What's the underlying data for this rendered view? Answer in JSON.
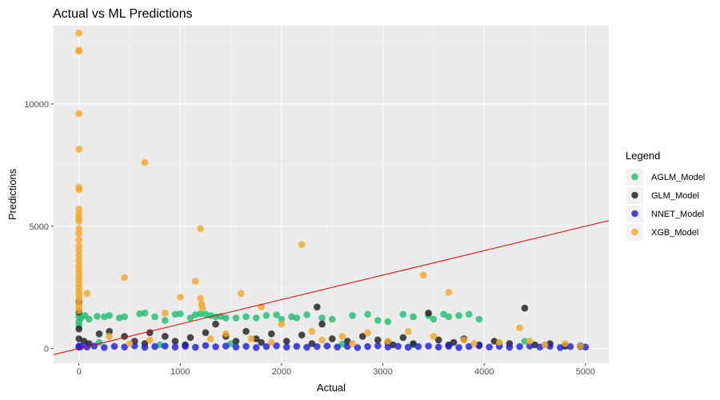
{
  "chart_data": {
    "type": "scatter",
    "title": "Actual vs ML Predictions",
    "xlabel": "Actual",
    "ylabel": "Predictions",
    "xlim": [
      -250,
      5230
    ],
    "ylim": [
      -600,
      13200
    ],
    "x_ticks": [
      0,
      1000,
      2000,
      3000,
      4000,
      5000
    ],
    "y_ticks": [
      0,
      5000,
      10000
    ],
    "grid": true,
    "legend": {
      "title": "Legend",
      "placement": "right"
    },
    "reference_line": {
      "type": "y=x",
      "color": "#e00000"
    },
    "series": [
      {
        "name": "AGLM_Model",
        "color": "#20c070",
        "points": [
          [
            0,
            1300
          ],
          [
            0,
            1100
          ],
          [
            0,
            1450
          ],
          [
            0,
            950
          ],
          [
            20,
            1250
          ],
          [
            60,
            1350
          ],
          [
            100,
            1200
          ],
          [
            180,
            1320
          ],
          [
            250,
            1300
          ],
          [
            300,
            1350
          ],
          [
            400,
            1250
          ],
          [
            450,
            1300
          ],
          [
            600,
            1420
          ],
          [
            650,
            1450
          ],
          [
            750,
            1300
          ],
          [
            850,
            1150
          ],
          [
            950,
            1400
          ],
          [
            1000,
            1420
          ],
          [
            1100,
            1250
          ],
          [
            1150,
            1380
          ],
          [
            1200,
            1420
          ],
          [
            1250,
            1400
          ],
          [
            1300,
            1350
          ],
          [
            1350,
            1300
          ],
          [
            1400,
            1320
          ],
          [
            1450,
            1250
          ],
          [
            1550,
            1250
          ],
          [
            1650,
            1300
          ],
          [
            1750,
            1250
          ],
          [
            1850,
            1350
          ],
          [
            1950,
            1380
          ],
          [
            2000,
            1200
          ],
          [
            2100,
            1300
          ],
          [
            2150,
            1250
          ],
          [
            2250,
            1380
          ],
          [
            2400,
            1250
          ],
          [
            2500,
            1200
          ],
          [
            2700,
            1350
          ],
          [
            2850,
            1400
          ],
          [
            2950,
            1150
          ],
          [
            3050,
            1100
          ],
          [
            3200,
            1400
          ],
          [
            3300,
            1300
          ],
          [
            3450,
            1350
          ],
          [
            3500,
            1200
          ],
          [
            3600,
            1400
          ],
          [
            3650,
            1300
          ],
          [
            3750,
            1350
          ],
          [
            3850,
            1400
          ],
          [
            3950,
            1200
          ],
          [
            4150,
            200
          ],
          [
            4400,
            300
          ],
          [
            4600,
            150
          ],
          [
            4800,
            100
          ],
          [
            4950,
            120
          ],
          [
            200,
            250
          ],
          [
            800,
            150
          ],
          [
            1500,
            200
          ],
          [
            2600,
            180
          ],
          [
            3300,
            150
          ]
        ]
      },
      {
        "name": "GLM_Model",
        "color": "#202020",
        "points": [
          [
            0,
            1900
          ],
          [
            0,
            1500
          ],
          [
            0,
            800
          ],
          [
            0,
            400
          ],
          [
            50,
            300
          ],
          [
            200,
            600
          ],
          [
            300,
            700
          ],
          [
            450,
            500
          ],
          [
            550,
            300
          ],
          [
            700,
            650
          ],
          [
            850,
            500
          ],
          [
            950,
            300
          ],
          [
            1100,
            450
          ],
          [
            1250,
            650
          ],
          [
            1350,
            1000
          ],
          [
            1450,
            500
          ],
          [
            1550,
            300
          ],
          [
            1650,
            700
          ],
          [
            1750,
            400
          ],
          [
            1900,
            600
          ],
          [
            2050,
            300
          ],
          [
            2200,
            550
          ],
          [
            2350,
            1700
          ],
          [
            2400,
            1000
          ],
          [
            2500,
            400
          ],
          [
            2650,
            300
          ],
          [
            2800,
            500
          ],
          [
            2950,
            350
          ],
          [
            3050,
            250
          ],
          [
            3200,
            450
          ],
          [
            3300,
            200
          ],
          [
            3450,
            1450
          ],
          [
            3550,
            350
          ],
          [
            3700,
            250
          ],
          [
            3800,
            400
          ],
          [
            3950,
            150
          ],
          [
            4100,
            300
          ],
          [
            4250,
            200
          ],
          [
            4400,
            1650
          ],
          [
            4500,
            150
          ],
          [
            4650,
            200
          ],
          [
            4800,
            100
          ],
          [
            4950,
            80
          ],
          [
            100,
            200
          ],
          [
            650,
            200
          ],
          [
            1050,
            150
          ],
          [
            1800,
            250
          ],
          [
            2300,
            200
          ],
          [
            3100,
            150
          ],
          [
            3650,
            150
          ]
        ]
      },
      {
        "name": "NNET_Model",
        "color": "#2020e0",
        "points": [
          [
            0,
            100
          ],
          [
            0,
            50
          ],
          [
            20,
            80
          ],
          [
            80,
            60
          ],
          [
            150,
            100
          ],
          [
            250,
            40
          ],
          [
            350,
            90
          ],
          [
            450,
            60
          ],
          [
            550,
            110
          ],
          [
            650,
            50
          ],
          [
            750,
            80
          ],
          [
            850,
            100
          ],
          [
            950,
            60
          ],
          [
            1050,
            90
          ],
          [
            1150,
            50
          ],
          [
            1250,
            120
          ],
          [
            1350,
            70
          ],
          [
            1450,
            100
          ],
          [
            1550,
            60
          ],
          [
            1650,
            90
          ],
          [
            1750,
            40
          ],
          [
            1850,
            80
          ],
          [
            1950,
            110
          ],
          [
            2050,
            60
          ],
          [
            2150,
            90
          ],
          [
            2250,
            50
          ],
          [
            2350,
            80
          ],
          [
            2450,
            100
          ],
          [
            2550,
            60
          ],
          [
            2650,
            90
          ],
          [
            2750,
            40
          ],
          [
            2850,
            80
          ],
          [
            2950,
            110
          ],
          [
            3050,
            60
          ],
          [
            3150,
            90
          ],
          [
            3250,
            50
          ],
          [
            3350,
            80
          ],
          [
            3450,
            100
          ],
          [
            3550,
            60
          ],
          [
            3650,
            90
          ],
          [
            3750,
            40
          ],
          [
            3850,
            80
          ],
          [
            3950,
            110
          ],
          [
            4050,
            60
          ],
          [
            4150,
            90
          ],
          [
            4250,
            50
          ],
          [
            4350,
            80
          ],
          [
            4450,
            100
          ],
          [
            4550,
            60
          ],
          [
            4650,
            90
          ],
          [
            4750,
            40
          ],
          [
            4850,
            80
          ],
          [
            4950,
            110
          ],
          [
            5000,
            60
          ]
        ]
      },
      {
        "name": "XGB_Model",
        "color": "#f5a623",
        "points": [
          [
            0,
            12900
          ],
          [
            0,
            12200
          ],
          [
            0,
            12150
          ],
          [
            0,
            9600
          ],
          [
            0,
            8150
          ],
          [
            0,
            6600
          ],
          [
            0,
            6500
          ],
          [
            0,
            5700
          ],
          [
            0,
            5500
          ],
          [
            0,
            5350
          ],
          [
            0,
            5200
          ],
          [
            0,
            4900
          ],
          [
            0,
            4700
          ],
          [
            0,
            4450
          ],
          [
            0,
            4200
          ],
          [
            0,
            4000
          ],
          [
            0,
            3800
          ],
          [
            0,
            3600
          ],
          [
            0,
            3400
          ],
          [
            0,
            3250
          ],
          [
            0,
            3100
          ],
          [
            0,
            2950
          ],
          [
            0,
            2800
          ],
          [
            0,
            2650
          ],
          [
            0,
            2500
          ],
          [
            0,
            2350
          ],
          [
            0,
            2200
          ],
          [
            0,
            2050
          ],
          [
            0,
            1850
          ],
          [
            0,
            1700
          ],
          [
            0,
            1550
          ],
          [
            80,
            2250
          ],
          [
            450,
            2900
          ],
          [
            650,
            7600
          ],
          [
            850,
            1450
          ],
          [
            1000,
            2100
          ],
          [
            1150,
            2750
          ],
          [
            1200,
            4900
          ],
          [
            1200,
            2050
          ],
          [
            1210,
            1800
          ],
          [
            1220,
            1650
          ],
          [
            1300,
            400
          ],
          [
            1450,
            600
          ],
          [
            1600,
            2250
          ],
          [
            1800,
            1700
          ],
          [
            2200,
            4250
          ],
          [
            2000,
            1000
          ],
          [
            2300,
            700
          ],
          [
            2400,
            350
          ],
          [
            2600,
            500
          ],
          [
            2850,
            650
          ],
          [
            3050,
            300
          ],
          [
            3250,
            700
          ],
          [
            3400,
            3000
          ],
          [
            3500,
            500
          ],
          [
            3650,
            2300
          ],
          [
            3800,
            350
          ],
          [
            4150,
            250
          ],
          [
            4350,
            850
          ],
          [
            4450,
            300
          ],
          [
            4600,
            150
          ],
          [
            4800,
            200
          ],
          [
            4950,
            100
          ],
          [
            300,
            500
          ],
          [
            500,
            200
          ],
          [
            700,
            350
          ],
          [
            1700,
            400
          ],
          [
            1900,
            250
          ],
          [
            2700,
            200
          ],
          [
            3900,
            200
          ]
        ]
      }
    ]
  }
}
